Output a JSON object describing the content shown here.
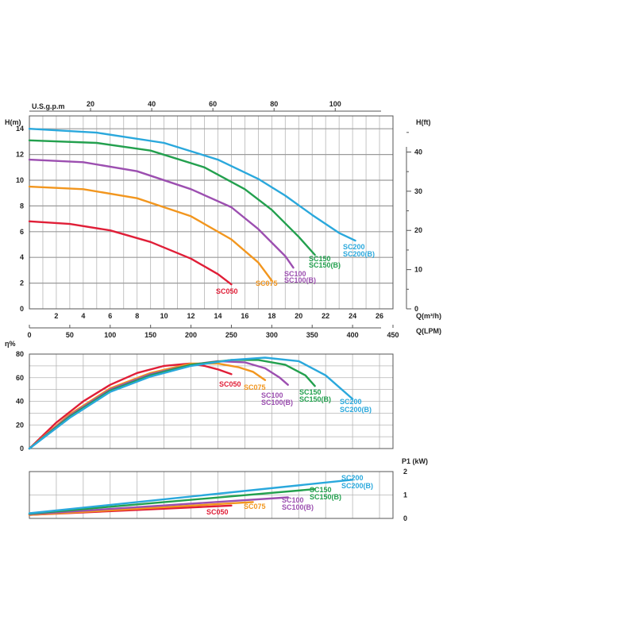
{
  "colors": {
    "SC050": "#e01e37",
    "SC075": "#f2961e",
    "SC100": "#9c4fb0",
    "SC150": "#23a04e",
    "SC200": "#2aa8dc"
  },
  "chart_data": [
    {
      "type": "line",
      "xlabel": "Q(m³/h)",
      "xlabel_lpm": "Q(LPM)",
      "xlabel_gpm": "U.S.g.p.m",
      "ylabel": "H(m)",
      "ylabel_right": "H(ft)",
      "xlim": [
        0,
        27
      ],
      "ylim": [
        0,
        15
      ],
      "x_ticks": [
        2,
        4,
        6,
        8,
        10,
        12,
        14,
        16,
        18,
        20,
        22,
        24,
        26
      ],
      "y_ticks": [
        0,
        2,
        4,
        6,
        8,
        10,
        12,
        14
      ],
      "y_ticks_ft": [
        0,
        10,
        20,
        30,
        40
      ],
      "lpm_ticks": [
        0,
        50,
        100,
        150,
        200,
        250,
        300,
        350,
        400,
        450
      ],
      "gpm_ticks": [
        20,
        40,
        60,
        80,
        100
      ],
      "series": [
        {
          "name": "SC050",
          "label": "SC050",
          "x": [
            0,
            3,
            6,
            9,
            12,
            14,
            15
          ],
          "y": [
            6.8,
            6.6,
            6.1,
            5.2,
            3.9,
            2.7,
            1.9
          ]
        },
        {
          "name": "SC075",
          "label": "SC075",
          "x": [
            0,
            4,
            8,
            12,
            15,
            17,
            18
          ],
          "y": [
            9.5,
            9.3,
            8.6,
            7.2,
            5.4,
            3.6,
            2.2
          ]
        },
        {
          "name": "SC100",
          "label": "SC100",
          "label2": "SC100(B)",
          "x": [
            0,
            4,
            8,
            12,
            15,
            17,
            19,
            19.6
          ],
          "y": [
            11.6,
            11.4,
            10.7,
            9.3,
            7.9,
            6.2,
            4.1,
            3.2
          ]
        },
        {
          "name": "SC150",
          "label": "SC150",
          "label2": "SC150(B)",
          "x": [
            0,
            5,
            9,
            13,
            16,
            18,
            20,
            21.2
          ],
          "y": [
            13.1,
            12.9,
            12.3,
            11,
            9.3,
            7.7,
            5.6,
            4.2
          ]
        },
        {
          "name": "SC200",
          "label": "SC200",
          "label2": "SC200(B)",
          "x": [
            0,
            5,
            10,
            14,
            17,
            19,
            21,
            23,
            24.2
          ],
          "y": [
            14,
            13.7,
            12.9,
            11.6,
            10.1,
            8.8,
            7.3,
            5.9,
            5.3
          ]
        }
      ]
    },
    {
      "type": "line",
      "ylabel": "η%",
      "ylim": [
        0,
        80
      ],
      "y_ticks": [
        0,
        20,
        40,
        60,
        80
      ],
      "series": [
        {
          "name": "SC050",
          "label": "SC050",
          "x": [
            0,
            2,
            4,
            6,
            8,
            10,
            11.9,
            13,
            14,
            15
          ],
          "y": [
            0,
            22,
            40,
            54,
            64,
            70,
            72,
            70,
            67,
            63
          ]
        },
        {
          "name": "SC075",
          "label": "SC075",
          "x": [
            0,
            3,
            6,
            9,
            12,
            14,
            15.5,
            16.6,
            17.5
          ],
          "y": [
            0,
            29,
            51,
            64,
            72,
            72,
            69,
            65,
            58
          ]
        },
        {
          "name": "SC100",
          "label": "SC100",
          "label2": "SC100(B)",
          "x": [
            0,
            3,
            6,
            9,
            12,
            14,
            16,
            17.5,
            18.6,
            19.2
          ],
          "y": [
            0,
            28,
            50,
            63,
            71,
            74,
            73,
            68,
            60,
            54
          ]
        },
        {
          "name": "SC150",
          "label": "SC150",
          "label2": "SC150(B)",
          "x": [
            0,
            3,
            6,
            9,
            12,
            15,
            17,
            19,
            20.5,
            21.2
          ],
          "y": [
            0,
            27,
            49,
            62,
            71,
            75,
            75,
            71,
            62,
            53
          ]
        },
        {
          "name": "SC200",
          "label": "SC200",
          "label2": "SC200(B)",
          "x": [
            0,
            3,
            6,
            9,
            12,
            15,
            17.5,
            20,
            22,
            24
          ],
          "y": [
            0,
            26,
            48,
            61,
            70,
            75,
            77,
            74,
            62,
            42
          ]
        }
      ]
    },
    {
      "type": "line",
      "ylabel": "P1 (kW)",
      "ylim": [
        0,
        2
      ],
      "y_ticks": [
        0,
        1,
        2
      ],
      "series": [
        {
          "name": "SC050",
          "label": "SC050",
          "x": [
            0,
            15
          ],
          "y": [
            0.15,
            0.55
          ]
        },
        {
          "name": "SC075",
          "label": "SC075",
          "x": [
            0,
            16.6
          ],
          "y": [
            0.15,
            0.7
          ]
        },
        {
          "name": "SC100",
          "label": "SC100",
          "label2": "SC100(B)",
          "x": [
            0,
            19.2
          ],
          "y": [
            0.18,
            0.9
          ]
        },
        {
          "name": "SC150",
          "label": "SC150",
          "label2": "SC150(B)",
          "x": [
            0,
            21.2
          ],
          "y": [
            0.2,
            1.25
          ]
        },
        {
          "name": "SC200",
          "label": "SC200",
          "label2": "SC200(B)",
          "x": [
            0,
            24
          ],
          "y": [
            0.22,
            1.65
          ]
        }
      ]
    }
  ]
}
